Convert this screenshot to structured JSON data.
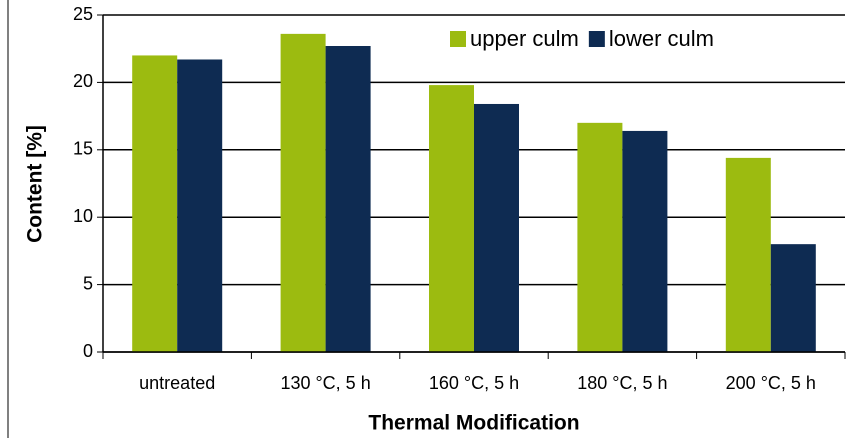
{
  "chart_data": {
    "type": "bar",
    "x_label": "Thermal Modification",
    "y_label": "Content [%]",
    "categories": [
      "untreated",
      "130 °C, 5 h",
      "160 °C, 5 h",
      "180 °C, 5 h",
      "200 °C, 5 h"
    ],
    "series": [
      {
        "name": "upper culm",
        "color": "#9cbb10",
        "values": [
          22.0,
          23.6,
          19.8,
          17.0,
          14.4
        ]
      },
      {
        "name": "lower culm",
        "color": "#0e2b52",
        "values": [
          21.7,
          22.7,
          18.4,
          16.4,
          8.0
        ]
      }
    ],
    "ylim": [
      0,
      25
    ],
    "yticks": [
      0,
      5,
      10,
      15,
      20,
      25
    ],
    "grid": true,
    "legend": "upper right"
  }
}
